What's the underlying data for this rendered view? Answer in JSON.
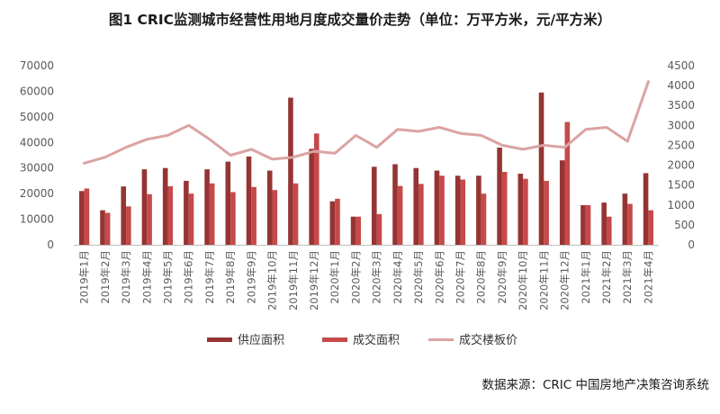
{
  "colors": {
    "supply": "#963434",
    "deal": "#c64a4a",
    "price": "#dba3a3",
    "axis": "#bfbfbf",
    "text": "#595959"
  },
  "chart_data": {
    "type": "bar",
    "title": "图1   CRIC监测城市经营性用地月度成交量价走势（单位：万平方米，元/平方米）",
    "categories": [
      "2019年1月",
      "2019年2月",
      "2019年3月",
      "2019年4月",
      "2019年5月",
      "2019年6月",
      "2019年7月",
      "2019年8月",
      "2019年9月",
      "2019年10月",
      "2019年11月",
      "2019年12月",
      "2020年1月",
      "2020年2月",
      "2020年3月",
      "2020年4月",
      "2020年5月",
      "2020年6月",
      "2020年7月",
      "2020年8月",
      "2020年9月",
      "2020年10月",
      "2020年11月",
      "2020年12月",
      "2021年1月",
      "2021年2月",
      "2021年3月",
      "2021年4月"
    ],
    "series": [
      {
        "name": "供应面积",
        "type": "bar",
        "axis": "left",
        "values": [
          21000,
          13500,
          22800,
          29500,
          30000,
          25000,
          29500,
          32500,
          34500,
          29000,
          57500,
          37500,
          17000,
          11000,
          30500,
          31500,
          30000,
          29000,
          27000,
          27000,
          38000,
          27800,
          59500,
          33000,
          15500,
          16500,
          20000,
          28000
        ]
      },
      {
        "name": "成交面积",
        "type": "bar",
        "axis": "left",
        "values": [
          22000,
          12500,
          15000,
          19800,
          22900,
          20000,
          24000,
          20600,
          22600,
          21400,
          24000,
          43500,
          18000,
          11000,
          12000,
          23000,
          23800,
          27000,
          25500,
          20000,
          28500,
          25800,
          25000,
          48000,
          15500,
          11000,
          16000,
          13500
        ]
      },
      {
        "name": "成交楼板价",
        "type": "line",
        "axis": "right",
        "values": [
          2050,
          2200,
          2450,
          2650,
          2750,
          3000,
          2650,
          2250,
          2400,
          2150,
          2200,
          2350,
          2300,
          2750,
          2450,
          2900,
          2850,
          2950,
          2800,
          2750,
          2500,
          2400,
          2500,
          2450,
          2900,
          2950,
          2600,
          4100
        ]
      }
    ],
    "ylim_left": [
      0,
      70000
    ],
    "yticks_left": [
      0,
      10000,
      20000,
      30000,
      40000,
      50000,
      60000,
      70000
    ],
    "ylim_right": [
      0,
      4500
    ],
    "yticks_right": [
      0,
      500,
      1000,
      1500,
      2000,
      2500,
      3000,
      3500,
      4000,
      4500
    ],
    "legend_position": "bottom-center",
    "xlabel": "",
    "ylabel": ""
  },
  "source_note": "数据来源：CRIC 中国房地产决策咨询系统"
}
